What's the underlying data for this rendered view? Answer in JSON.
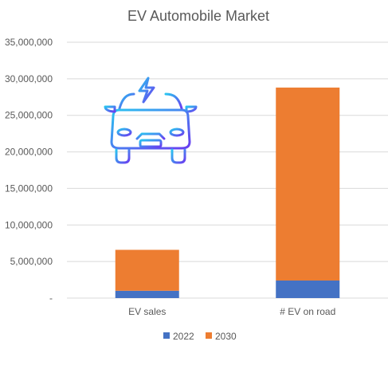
{
  "chart_data": {
    "type": "bar",
    "stacked": true,
    "title": "EV Automobile Market",
    "categories": [
      "EV sales",
      "# EV on road"
    ],
    "series": [
      {
        "name": "2022",
        "color": "#4472c4",
        "values": [
          1000000,
          2400000
        ]
      },
      {
        "name": "2030",
        "color": "#ed7d31",
        "values": [
          5600000,
          26400000
        ]
      }
    ],
    "ylim": [
      0,
      35000000
    ],
    "yticks": [
      0,
      5000000,
      10000000,
      15000000,
      20000000,
      25000000,
      30000000,
      35000000
    ],
    "ytick_labels": [
      "-",
      "5,000,000",
      "10,000,000",
      "15,000,000",
      "20,000,000",
      "25,000,000",
      "30,000,000",
      "35,000,000"
    ],
    "grid": true,
    "legend_position": "bottom",
    "icon": "electric-car-icon"
  }
}
